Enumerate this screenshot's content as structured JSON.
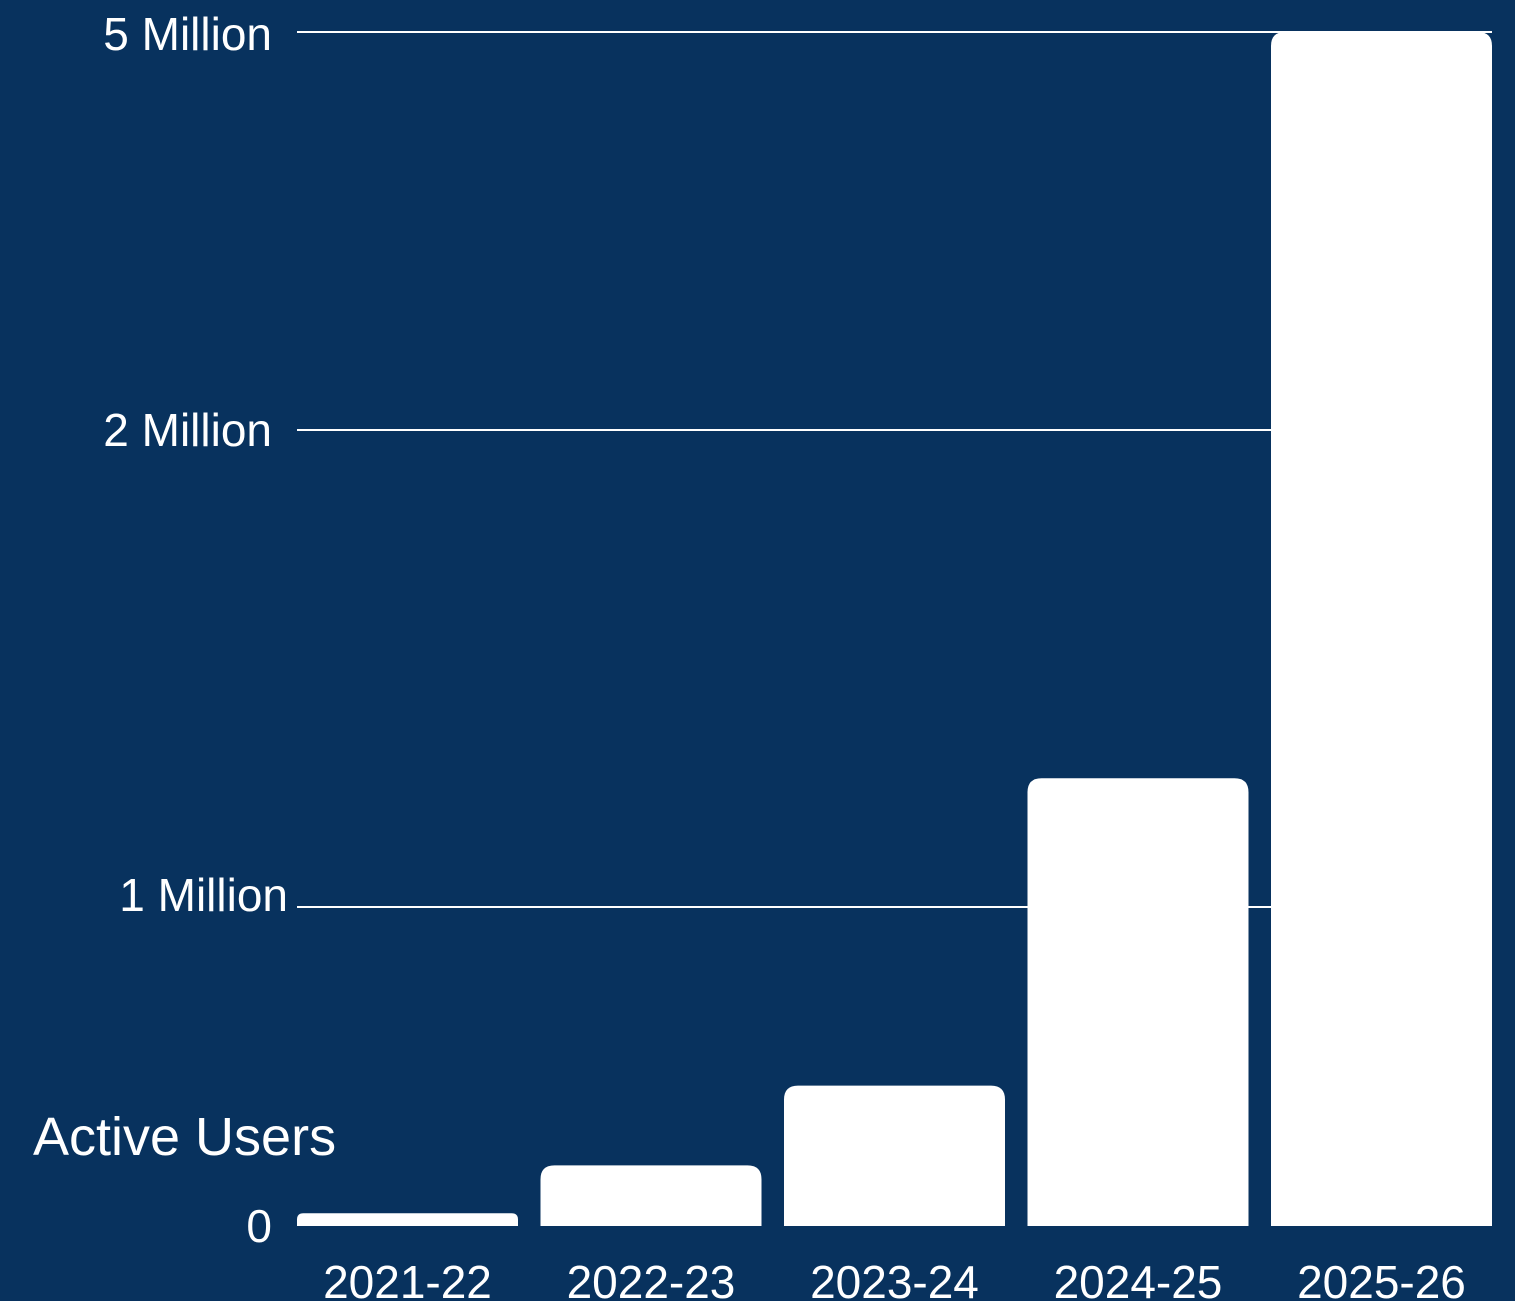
{
  "colors": {
    "background": "#08325e",
    "bars": "#ffffff",
    "gridlines": "#ffffff",
    "text": "#ffffff"
  },
  "chart_data": {
    "type": "bar",
    "ylabel": "Active Users",
    "categories": [
      "2021-22",
      "2022-23",
      "2023-24",
      "2024-25",
      "2025-26"
    ],
    "values": [
      40000,
      190000,
      440000,
      1270000,
      5000000
    ],
    "y_scale": "nonlinear (piecewise, ticks at 0, 1M, 2M, 5M)",
    "y_ticks": [
      {
        "value": 0,
        "label": "0"
      },
      {
        "value": 1000000,
        "label": "1 Million"
      },
      {
        "value": 2000000,
        "label": "2 Million"
      },
      {
        "value": 5000000,
        "label": "5 Million"
      }
    ],
    "ylim": [
      0,
      5000000
    ],
    "grid": true,
    "legend": "none"
  }
}
